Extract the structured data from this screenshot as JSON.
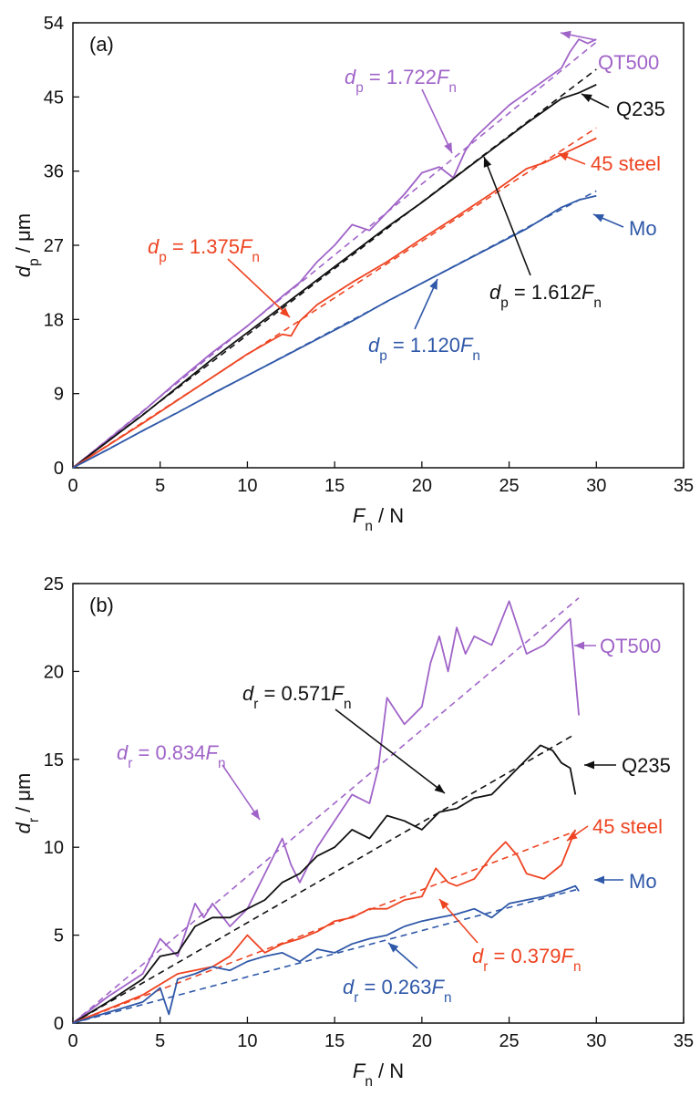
{
  "chart_data": [
    {
      "type": "line",
      "panel_label": "(a)",
      "xlabel": {
        "symbol": "F",
        "sub": "n",
        "unit": " / N"
      },
      "ylabel": {
        "symbol": "d",
        "sub": "p",
        "unit": " / μm"
      },
      "xlim": [
        0,
        35
      ],
      "ylim": [
        0,
        54
      ],
      "xticks": [
        0,
        5,
        10,
        15,
        20,
        25,
        30,
        35
      ],
      "yticks": [
        0,
        9,
        18,
        27,
        36,
        45,
        54
      ],
      "grid": false,
      "series": [
        {
          "name": "QT500",
          "color": "#A064C8",
          "slope": 1.722,
          "x": [
            0,
            2,
            4,
            6,
            8,
            10,
            11,
            12,
            13,
            14,
            15,
            16,
            17,
            18,
            19,
            20,
            21,
            21.8,
            22.5,
            23,
            24,
            25,
            26,
            27,
            28,
            28.5,
            29,
            29.5,
            30
          ],
          "y": [
            0,
            3.4,
            6.8,
            10.5,
            14.0,
            17.2,
            19.0,
            20.8,
            22.5,
            25.0,
            27.0,
            29.5,
            28.8,
            31.0,
            33.2,
            35.8,
            36.5,
            35.2,
            38.5,
            40.0,
            42.0,
            44.0,
            45.5,
            47.0,
            48.5,
            50.5,
            52.0,
            51.5,
            52.0
          ]
        },
        {
          "name": "Q235",
          "color": "#111111",
          "slope": 1.612,
          "x": [
            0,
            2,
            4,
            6,
            8,
            10,
            12,
            14,
            16,
            18,
            20,
            22,
            24,
            26,
            28,
            29,
            30
          ],
          "y": [
            0,
            3.2,
            6.4,
            9.8,
            13.2,
            16.4,
            19.6,
            22.8,
            26.0,
            29.2,
            32.2,
            35.4,
            38.6,
            41.8,
            44.8,
            45.5,
            46.5
          ]
        },
        {
          "name": "45 steel",
          "color": "#EE4422",
          "slope": 1.375,
          "x": [
            0,
            2,
            4,
            6,
            8,
            10,
            11,
            12,
            12.5,
            13,
            14,
            16,
            18,
            20,
            22,
            24,
            26,
            27,
            28,
            29,
            30
          ],
          "y": [
            0,
            2.7,
            5.4,
            8.2,
            11.0,
            13.8,
            15.0,
            16.2,
            16.0,
            17.8,
            19.8,
            22.5,
            25.0,
            27.8,
            30.5,
            33.3,
            36.3,
            37.0,
            38.0,
            39.0,
            40.0
          ]
        },
        {
          "name": "Mo",
          "color": "#2F58A8",
          "slope": 1.12,
          "x": [
            0,
            2,
            4,
            6,
            8,
            10,
            12,
            14,
            16,
            18,
            20,
            22,
            24,
            26,
            28,
            29,
            30
          ],
          "y": [
            0,
            2.2,
            4.5,
            6.7,
            9.0,
            11.2,
            13.4,
            15.6,
            17.8,
            20.2,
            22.4,
            24.6,
            26.8,
            29.0,
            31.6,
            32.5,
            33.0
          ]
        }
      ],
      "annotations": [
        {
          "series": "QT500",
          "text": "QT500"
        },
        {
          "series": "Q235",
          "text": "Q235"
        },
        {
          "series": "45 steel",
          "text": "45 steel"
        },
        {
          "series": "Mo",
          "text": "Mo"
        }
      ],
      "fit_labels": [
        {
          "series": "QT500",
          "sym": "d",
          "sub": "p",
          "coef": "1.722",
          "var": "F",
          "varsub": "n"
        },
        {
          "series": "45 steel",
          "sym": "d",
          "sub": "p",
          "coef": "1.375",
          "var": "F",
          "varsub": "n"
        },
        {
          "series": "Q235",
          "sym": "d",
          "sub": "p",
          "coef": "1.612",
          "var": "F",
          "varsub": "n"
        },
        {
          "series": "Mo",
          "sym": "d",
          "sub": "p",
          "coef": "1.120",
          "var": "F",
          "varsub": "n"
        }
      ]
    },
    {
      "type": "line",
      "panel_label": "(b)",
      "xlabel": {
        "symbol": "F",
        "sub": "n",
        "unit": " / N"
      },
      "ylabel": {
        "symbol": "d",
        "sub": "r",
        "unit": " / μm"
      },
      "xlim": [
        0,
        35
      ],
      "ylim": [
        0,
        25
      ],
      "xticks": [
        0,
        5,
        10,
        15,
        20,
        25,
        30,
        35
      ],
      "yticks": [
        0,
        5,
        10,
        15,
        20,
        25
      ],
      "grid": false,
      "series": [
        {
          "name": "QT500",
          "color": "#A064C8",
          "slope": 0.834,
          "x": [
            0,
            2,
            4,
            5,
            5.5,
            6,
            7,
            7.5,
            8,
            9,
            10,
            11,
            12,
            12.5,
            13,
            14,
            15,
            16,
            17,
            17.5,
            18,
            19,
            20,
            20.5,
            21,
            21.5,
            22,
            22.5,
            23,
            24,
            25,
            26,
            27,
            28,
            28.5,
            29
          ],
          "y": [
            0,
            1.5,
            2.8,
            4.8,
            4.3,
            3.8,
            6.8,
            6.0,
            6.8,
            5.5,
            6.5,
            8.5,
            10.5,
            9.0,
            8.0,
            10.0,
            11.5,
            13.0,
            12.5,
            14.5,
            18.5,
            17.0,
            18.0,
            20.5,
            22.0,
            20.0,
            22.5,
            21.0,
            22.0,
            21.5,
            24.0,
            21.0,
            21.5,
            22.5,
            23.0,
            17.5
          ]
        },
        {
          "name": "Q235",
          "color": "#111111",
          "slope": 0.571,
          "x": [
            0,
            2,
            4,
            5,
            6,
            7,
            8,
            9,
            10,
            11,
            12,
            13,
            14,
            15,
            16,
            17,
            18,
            19,
            20,
            21,
            22,
            23,
            24,
            25,
            26,
            26.8,
            27.5,
            28,
            28.5,
            28.8
          ],
          "y": [
            0,
            1.2,
            2.5,
            3.8,
            4.0,
            5.5,
            6.0,
            6.0,
            6.5,
            7.0,
            8.0,
            8.5,
            9.5,
            10.0,
            11.0,
            10.5,
            11.8,
            11.5,
            11.0,
            12.0,
            12.2,
            12.8,
            13.0,
            14.0,
            15.0,
            15.8,
            15.5,
            14.8,
            14.5,
            13.0
          ]
        },
        {
          "name": "45 steel",
          "color": "#EE4422",
          "slope": 0.379,
          "x": [
            0,
            2,
            4,
            6,
            8,
            9,
            10,
            11,
            12,
            13,
            14,
            15,
            16,
            17,
            18,
            19,
            20,
            20.8,
            21.5,
            22,
            23,
            24,
            24.8,
            25.5,
            26,
            27,
            28,
            28.8
          ],
          "y": [
            0,
            0.8,
            1.6,
            2.8,
            3.2,
            3.8,
            5.0,
            4.0,
            4.5,
            4.8,
            5.2,
            5.8,
            6.0,
            6.5,
            6.5,
            7.0,
            7.2,
            8.8,
            8.0,
            7.8,
            8.2,
            9.5,
            10.3,
            9.5,
            8.5,
            8.2,
            9.0,
            11.0
          ]
        },
        {
          "name": "Mo",
          "color": "#2F58A8",
          "slope": 0.263,
          "x": [
            0,
            2,
            4,
            5,
            5.5,
            6,
            7,
            8,
            9,
            10,
            11,
            12,
            13,
            14,
            15,
            16,
            17,
            18,
            19,
            20,
            21,
            22,
            23,
            24,
            25,
            26,
            27,
            28,
            28.8,
            29
          ],
          "y": [
            0,
            0.6,
            1.2,
            2.0,
            0.5,
            2.5,
            2.8,
            3.2,
            3.0,
            3.5,
            3.8,
            4.0,
            3.5,
            4.2,
            4.0,
            4.5,
            4.8,
            5.0,
            5.5,
            5.8,
            6.0,
            6.2,
            6.5,
            6.0,
            6.8,
            7.0,
            7.2,
            7.5,
            7.8,
            7.5
          ]
        }
      ],
      "annotations": [
        {
          "series": "QT500",
          "text": "QT500"
        },
        {
          "series": "Q235",
          "text": "Q235"
        },
        {
          "series": "45 steel",
          "text": "45 steel"
        },
        {
          "series": "Mo",
          "text": "Mo"
        }
      ],
      "fit_labels": [
        {
          "series": "Q235",
          "sym": "d",
          "sub": "r",
          "coef": "0.571",
          "var": "F",
          "varsub": "n"
        },
        {
          "series": "QT500",
          "sym": "d",
          "sub": "r",
          "coef": "0.834",
          "var": "F",
          "varsub": "n"
        },
        {
          "series": "45 steel",
          "sym": "d",
          "sub": "r",
          "coef": "0.379",
          "var": "F",
          "varsub": "n"
        },
        {
          "series": "Mo",
          "sym": "d",
          "sub": "r",
          "coef": "0.263",
          "var": "F",
          "varsub": "n"
        }
      ]
    }
  ]
}
